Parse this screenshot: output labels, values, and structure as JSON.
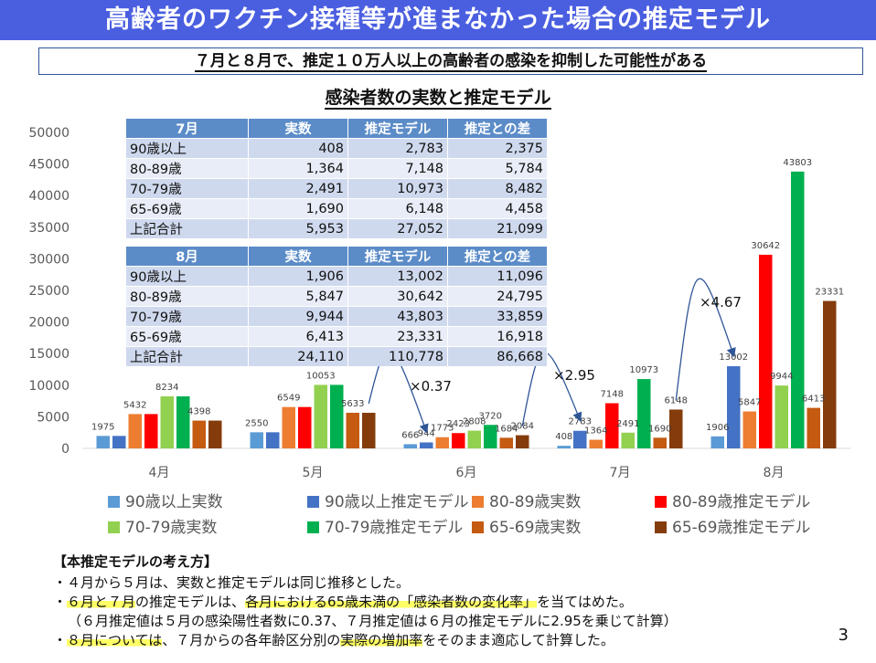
{
  "header": {
    "title": "高齢者のワクチン接種等が進まなかった場合の推定モデル",
    "subtitle": "７月と８月で、推定１０万人以上の高齢者の感染を抑制した可能性がある"
  },
  "chart_data": {
    "type": "bar",
    "title": "感染者数の実数と推定モデル",
    "categories": [
      "4月",
      "5月",
      "6月",
      "7月",
      "8月"
    ],
    "ylim": [
      0,
      50000
    ],
    "yticks": [
      0,
      5000,
      10000,
      15000,
      20000,
      25000,
      30000,
      35000,
      40000,
      45000,
      50000
    ],
    "grid": false,
    "legend_position": "bottom",
    "series": [
      {
        "name": "90歳以上実数",
        "color": "#5b9bd5",
        "values": [
          1975,
          2550,
          666,
          408,
          1906
        ]
      },
      {
        "name": "90歳以上推定モデル",
        "color": "#4472c4",
        "values": [
          1975,
          2550,
          944,
          2783,
          13002
        ]
      },
      {
        "name": "80-89歳実数",
        "color": "#ed7d31",
        "values": [
          5432,
          6549,
          1773,
          1364,
          5847
        ]
      },
      {
        "name": "80-89歳推定モデル",
        "color": "#ff0000",
        "values": [
          5432,
          6549,
          2423,
          7148,
          30642
        ]
      },
      {
        "name": "70-79歳実数",
        "color": "#92d050",
        "values": [
          8234,
          10053,
          2808,
          2491,
          9944
        ]
      },
      {
        "name": "70-79歳推定モデル",
        "color": "#00b050",
        "values": [
          8234,
          10053,
          3720,
          10973,
          43803
        ]
      },
      {
        "name": "65-69歳実数",
        "color": "#c55a11",
        "values": [
          4398,
          5633,
          1684,
          1690,
          6413
        ]
      },
      {
        "name": "65-69歳推定モデル",
        "color": "#843c0c",
        "values": [
          4398,
          5633,
          2084,
          6148,
          23331
        ]
      }
    ],
    "data_labels": [
      [
        {
          "series": 0,
          "text": "1975"
        },
        {
          "series": 2,
          "text": "5432"
        },
        {
          "series": 4,
          "text": "8234"
        },
        {
          "series": 6,
          "text": "4398"
        }
      ],
      [
        {
          "series": 0,
          "text": "2550"
        },
        {
          "series": 2,
          "text": "6549"
        },
        {
          "series": 4,
          "text": "10053"
        },
        {
          "series": 6,
          "text": "5633"
        }
      ],
      [
        {
          "series": 0,
          "text": "666"
        },
        {
          "series": 1,
          "text": "944"
        },
        {
          "series": 2,
          "text": "1773"
        },
        {
          "series": 3,
          "text": "2423"
        },
        {
          "series": 4,
          "text": "2808"
        },
        {
          "series": 5,
          "text": "3720"
        },
        {
          "series": 6,
          "text": "1684"
        },
        {
          "series": 7,
          "text": "2084"
        }
      ],
      [
        {
          "series": 0,
          "text": "408"
        },
        {
          "series": 1,
          "text": "2783"
        },
        {
          "series": 2,
          "text": "1364"
        },
        {
          "series": 3,
          "text": "7148"
        },
        {
          "series": 4,
          "text": "2491"
        },
        {
          "series": 5,
          "text": "10973"
        },
        {
          "series": 6,
          "text": "1690"
        },
        {
          "series": 7,
          "text": "6148"
        }
      ],
      [
        {
          "series": 0,
          "text": "1906"
        },
        {
          "series": 1,
          "text": "13002"
        },
        {
          "series": 2,
          "text": "5847"
        },
        {
          "series": 3,
          "text": "30642"
        },
        {
          "series": 4,
          "text": "9944"
        },
        {
          "series": 5,
          "text": "43803"
        },
        {
          "series": 6,
          "text": "6413"
        },
        {
          "series": 7,
          "text": "23331"
        }
      ]
    ],
    "annotations": [
      {
        "text": "×0.37",
        "from_category": "5月",
        "to_category": "6月"
      },
      {
        "text": "×2.95",
        "from_category": "6月",
        "to_category": "7月"
      },
      {
        "text": "×4.67",
        "from_category": "7月",
        "to_category": "8月"
      }
    ]
  },
  "tables": [
    {
      "headers": [
        "7月",
        "実数",
        "推定モデル",
        "推定との差"
      ],
      "rows": [
        [
          "90歳以上",
          "408",
          "2,783",
          "2,375"
        ],
        [
          "80-89歳",
          "1,364",
          "7,148",
          "5,784"
        ],
        [
          "70-79歳",
          "2,491",
          "10,973",
          "8,482"
        ],
        [
          "65-69歳",
          "1,690",
          "6,148",
          "4,458"
        ],
        [
          "上記合計",
          "5,953",
          "27,052",
          "21,099"
        ]
      ]
    },
    {
      "headers": [
        "8月",
        "実数",
        "推定モデル",
        "推定との差"
      ],
      "rows": [
        [
          "90歳以上",
          "1,906",
          "13,002",
          "11,096"
        ],
        [
          "80-89歳",
          "5,847",
          "30,642",
          "24,795"
        ],
        [
          "70-79歳",
          "9,944",
          "43,803",
          "33,859"
        ],
        [
          "65-69歳",
          "6,413",
          "23,331",
          "16,918"
        ],
        [
          "上記合計",
          "24,110",
          "110,778",
          "86,668"
        ]
      ]
    }
  ],
  "notes": {
    "heading": "【本推定モデルの考え方】",
    "line1": "・４月から５月は、実数と推定モデルは同じ推移とした。",
    "line2_a": "・",
    "line2_b": "６月と７月",
    "line2_c": "の推定モデルは、",
    "line2_d": "各月における65歳未満の「感染者数の変化率」",
    "line2_e": "を当てはめた。",
    "line3": "（６月推定値は５月の感染陽性者数に0.37、７月推定値は６月の推定モデルに2.95を乗じて計算）",
    "line4_a": "・",
    "line4_b": "８月については",
    "line4_c": "、７月からの各年齢区分別の",
    "line4_d": "実際の増加率",
    "line4_e": "をそのまま適応して計算した。"
  },
  "page_number": "3"
}
